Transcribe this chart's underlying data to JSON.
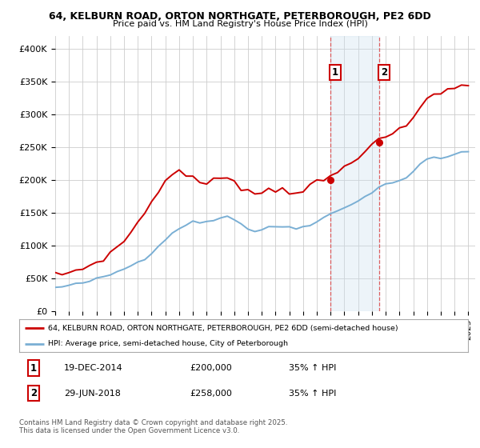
{
  "title_line1": "64, KELBURN ROAD, ORTON NORTHGATE, PETERBOROUGH, PE2 6DD",
  "title_line2": "Price paid vs. HM Land Registry's House Price Index (HPI)",
  "background_color": "#ffffff",
  "plot_bg_color": "#ffffff",
  "grid_color": "#cccccc",
  "red_color": "#cc0000",
  "blue_color": "#7aafd4",
  "shade_color": "#cce0f0",
  "ylim": [
    0,
    420000
  ],
  "yticks": [
    0,
    50000,
    100000,
    150000,
    200000,
    250000,
    300000,
    350000,
    400000
  ],
  "ytick_labels": [
    "£0",
    "£50K",
    "£100K",
    "£150K",
    "£200K",
    "£250K",
    "£300K",
    "£350K",
    "£400K"
  ],
  "legend_label_red": "64, KELBURN ROAD, ORTON NORTHGATE, PETERBOROUGH, PE2 6DD (semi-detached house)",
  "legend_label_blue": "HPI: Average price, semi-detached house, City of Peterborough",
  "annotation1_date": "19-DEC-2014",
  "annotation1_price": "£200,000",
  "annotation1_hpi": "35% ↑ HPI",
  "annotation2_date": "29-JUN-2018",
  "annotation2_price": "£258,000",
  "annotation2_hpi": "35% ↑ HPI",
  "footer": "Contains HM Land Registry data © Crown copyright and database right 2025.\nThis data is licensed under the Open Government Licence v3.0.",
  "sale1_x": 2014.96,
  "sale1_y": 200000,
  "sale2_x": 2018.5,
  "sale2_y": 258000,
  "xmin": 1995,
  "xmax": 2025.5,
  "hpi_years": [
    1995.0,
    1995.5,
    1996.0,
    1996.5,
    1997.0,
    1997.5,
    1998.0,
    1998.5,
    1999.0,
    1999.5,
    2000.0,
    2000.5,
    2001.0,
    2001.5,
    2002.0,
    2002.5,
    2003.0,
    2003.5,
    2004.0,
    2004.5,
    2005.0,
    2005.5,
    2006.0,
    2006.5,
    2007.0,
    2007.5,
    2008.0,
    2008.5,
    2009.0,
    2009.5,
    2010.0,
    2010.5,
    2011.0,
    2011.5,
    2012.0,
    2012.5,
    2013.0,
    2013.5,
    2014.0,
    2014.5,
    2015.0,
    2015.5,
    2016.0,
    2016.5,
    2017.0,
    2017.5,
    2018.0,
    2018.5,
    2019.0,
    2019.5,
    2020.0,
    2020.5,
    2021.0,
    2021.5,
    2022.0,
    2022.5,
    2023.0,
    2023.5,
    2024.0,
    2024.5,
    2025.0
  ],
  "hpi_vals": [
    36000,
    37500,
    39000,
    41000,
    43500,
    46000,
    49000,
    52000,
    56000,
    60000,
    65000,
    70000,
    75000,
    81000,
    90000,
    100000,
    110000,
    119000,
    127000,
    133000,
    136000,
    135000,
    137000,
    140000,
    143000,
    145000,
    141000,
    133000,
    126000,
    122000,
    125000,
    127000,
    129000,
    130000,
    128000,
    127000,
    129000,
    133000,
    138000,
    143000,
    148000,
    153000,
    158000,
    163000,
    170000,
    176000,
    181000,
    188000,
    194000,
    198000,
    199000,
    204000,
    214000,
    224000,
    231000,
    234000,
    234000,
    236000,
    239000,
    242000,
    244000
  ],
  "price_years": [
    1995.0,
    1995.5,
    1996.0,
    1996.5,
    1997.0,
    1997.5,
    1998.0,
    1998.5,
    1999.0,
    1999.5,
    2000.0,
    2000.5,
    2001.0,
    2001.5,
    2002.0,
    2002.5,
    2003.0,
    2003.5,
    2004.0,
    2004.5,
    2005.0,
    2005.5,
    2006.0,
    2006.5,
    2007.0,
    2007.5,
    2008.0,
    2008.5,
    2009.0,
    2009.5,
    2010.0,
    2010.5,
    2011.0,
    2011.5,
    2012.0,
    2012.5,
    2013.0,
    2013.5,
    2014.0,
    2014.5,
    2015.0,
    2015.5,
    2016.0,
    2016.5,
    2017.0,
    2017.5,
    2018.0,
    2018.5,
    2019.0,
    2019.5,
    2020.0,
    2020.5,
    2021.0,
    2021.5,
    2022.0,
    2022.5,
    2023.0,
    2023.5,
    2024.0,
    2024.5,
    2025.0
  ],
  "price_vals": [
    55000,
    57000,
    59000,
    62000,
    66000,
    70000,
    75000,
    81000,
    88000,
    97000,
    108000,
    121000,
    135000,
    150000,
    168000,
    185000,
    198000,
    208000,
    215000,
    210000,
    202000,
    196000,
    195000,
    198000,
    203000,
    207000,
    200000,
    190000,
    183000,
    180000,
    182000,
    185000,
    186000,
    187000,
    184000,
    182000,
    185000,
    190000,
    196000,
    200000,
    205000,
    212000,
    220000,
    228000,
    237000,
    248000,
    254000,
    258000,
    265000,
    272000,
    275000,
    282000,
    295000,
    310000,
    325000,
    332000,
    335000,
    338000,
    340000,
    342000,
    345000
  ]
}
